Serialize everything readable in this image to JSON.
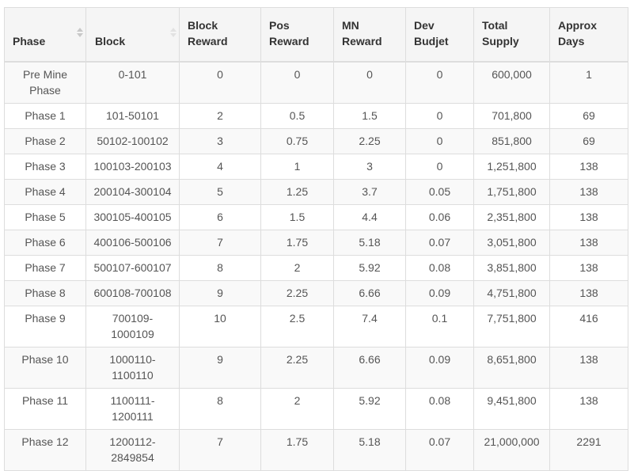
{
  "table": {
    "columns": [
      {
        "key": "phase",
        "label": "Phase",
        "sortable": true
      },
      {
        "key": "block",
        "label": "Block",
        "sortable": true
      },
      {
        "key": "block_reward",
        "label": "Block Reward",
        "sortable": false
      },
      {
        "key": "pos_reward",
        "label": "Pos Reward",
        "sortable": false
      },
      {
        "key": "mn_reward",
        "label": "MN Reward",
        "sortable": false
      },
      {
        "key": "dev_budjet",
        "label": "Dev Budjet",
        "sortable": false
      },
      {
        "key": "total_supply",
        "label": "Total Supply",
        "sortable": false
      },
      {
        "key": "approx_days",
        "label": "Approx Days",
        "sortable": false
      }
    ],
    "rows": [
      [
        "Pre Mine Phase",
        "0-101",
        "0",
        "0",
        "0",
        "0",
        "600,000",
        "1"
      ],
      [
        "Phase 1",
        "101-50101",
        "2",
        "0.5",
        "1.5",
        "0",
        "701,800",
        "69"
      ],
      [
        "Phase 2",
        "50102-100102",
        "3",
        "0.75",
        "2.25",
        "0",
        "851,800",
        "69"
      ],
      [
        "Phase 3",
        "100103-200103",
        "4",
        "1",
        "3",
        "0",
        "1,251,800",
        "138"
      ],
      [
        "Phase 4",
        "200104-300104",
        "5",
        "1.25",
        "3.7",
        "0.05",
        "1,751,800",
        "138"
      ],
      [
        "Phase 5",
        "300105-400105",
        "6",
        "1.5",
        "4.4",
        "0.06",
        "2,351,800",
        "138"
      ],
      [
        "Phase 6",
        "400106-500106",
        "7",
        "1.75",
        "5.18",
        "0.07",
        "3,051,800",
        "138"
      ],
      [
        "Phase 7",
        "500107-600107",
        "8",
        "2",
        "5.92",
        "0.08",
        "3,851,800",
        "138"
      ],
      [
        "Phase 8",
        "600108-700108",
        "9",
        "2.25",
        "6.66",
        "0.09",
        "4,751,800",
        "138"
      ],
      [
        "Phase 9",
        "700109-1000109",
        "10",
        "2.5",
        "7.4",
        "0.1",
        "7,751,800",
        "416"
      ],
      [
        "Phase 10",
        "1000110-1100110",
        "9",
        "2.25",
        "6.66",
        "0.09",
        "8,651,800",
        "138"
      ],
      [
        "Phase 11",
        "1100111-1200111",
        "8",
        "2",
        "5.92",
        "0.08",
        "9,451,800",
        "138"
      ],
      [
        "Phase 12",
        "1200112-2849854",
        "7",
        "1.75",
        "5.18",
        "0.07",
        "21,000,000",
        "2291"
      ]
    ]
  },
  "icons": {
    "sort": "sort-up-down-icon"
  },
  "colors": {
    "header_bg": "#f5f5f5",
    "stripe_bg": "#f9f9f9",
    "border": "#dddddd",
    "text": "#555555",
    "header_text": "#333333"
  }
}
